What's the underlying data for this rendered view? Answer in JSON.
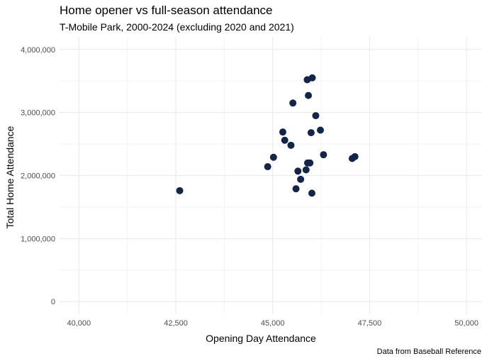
{
  "chart_data": {
    "type": "scatter",
    "title": "Home opener vs full-season attendance",
    "subtitle": "T-Mobile Park, 2000-2024 (excluding 2020 and 2021)",
    "caption": "Data from Baseball Reference",
    "xlabel": "Opening Day Attendance",
    "ylabel": "Total Home Attendance",
    "xlim": [
      39500,
      50400
    ],
    "ylim": [
      -200000,
      4200000
    ],
    "x_ticks": [
      40000,
      42500,
      45000,
      47500,
      50000
    ],
    "x_tick_labels": [
      "40,000",
      "42,500",
      "45,000",
      "47,500",
      "50,000"
    ],
    "y_ticks": [
      0,
      1000000,
      2000000,
      3000000,
      4000000
    ],
    "y_tick_labels": [
      "0",
      "1,000,000",
      "2,000,000",
      "3,000,000",
      "4,000,000"
    ],
    "grid": true,
    "point_color": "#14254a",
    "points": [
      {
        "x": 42600,
        "y": 1760000
      },
      {
        "x": 44870,
        "y": 2140000
      },
      {
        "x": 45020,
        "y": 2290000
      },
      {
        "x": 45260,
        "y": 2690000
      },
      {
        "x": 45310,
        "y": 2560000
      },
      {
        "x": 45470,
        "y": 2480000
      },
      {
        "x": 45520,
        "y": 3150000
      },
      {
        "x": 45600,
        "y": 1790000
      },
      {
        "x": 45650,
        "y": 2070000
      },
      {
        "x": 45720,
        "y": 1940000
      },
      {
        "x": 45860,
        "y": 2090000
      },
      {
        "x": 45890,
        "y": 3520000
      },
      {
        "x": 45900,
        "y": 2200000
      },
      {
        "x": 45920,
        "y": 3270000
      },
      {
        "x": 45960,
        "y": 2200000
      },
      {
        "x": 45990,
        "y": 2680000
      },
      {
        "x": 46010,
        "y": 1720000
      },
      {
        "x": 46020,
        "y": 3550000
      },
      {
        "x": 46110,
        "y": 2950000
      },
      {
        "x": 46230,
        "y": 2720000
      },
      {
        "x": 46310,
        "y": 2330000
      },
      {
        "x": 47050,
        "y": 2270000
      },
      {
        "x": 47120,
        "y": 2300000
      }
    ]
  }
}
